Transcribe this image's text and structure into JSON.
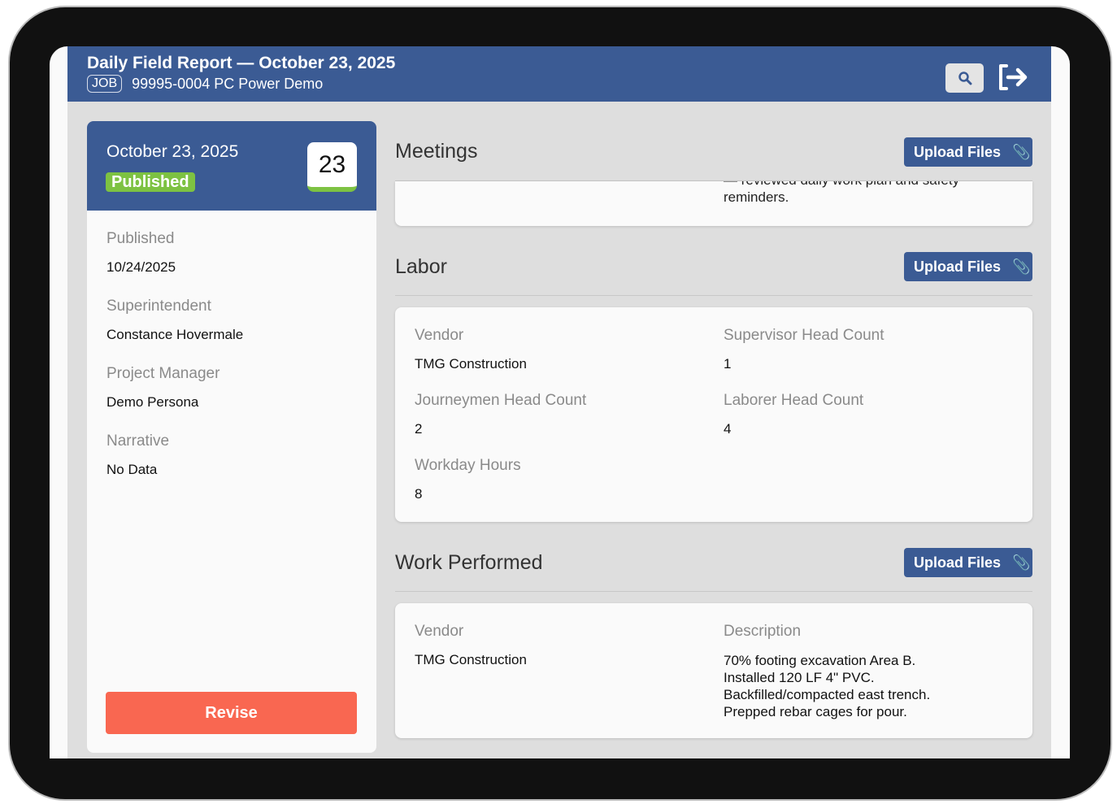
{
  "header": {
    "title": "Daily Field Report — October 23, 2025",
    "job_tag": "JOB",
    "job": "99995-0004 PC Power Demo"
  },
  "summary": {
    "date": "October 23, 2025",
    "status": "Published",
    "day": "23",
    "colors": {
      "status": "#7dc242",
      "header": "#3b5b94",
      "revise": "#f96751"
    },
    "fields": [
      {
        "label": "Published",
        "value": "10/24/2025"
      },
      {
        "label": "Superintendent",
        "value": "Constance Hovermale"
      },
      {
        "label": "Project Manager",
        "value": "Demo Persona"
      },
      {
        "label": "Narrative",
        "value": "No Data"
      }
    ],
    "revise": "Revise"
  },
  "upload_label": "Upload Files",
  "meetings": {
    "title": "Meetings",
    "text_clipped": "— reviewed daily work plan and safety",
    "text": "reminders."
  },
  "labor": {
    "title": "Labor",
    "fields": [
      {
        "label": "Vendor",
        "value": "TMG Construction"
      },
      {
        "label": "Supervisor Head Count",
        "value": "1"
      },
      {
        "label": "Journeymen Head Count",
        "value": "2"
      },
      {
        "label": "Laborer Head Count",
        "value": "4"
      },
      {
        "label": "Workday Hours",
        "value": "8"
      }
    ]
  },
  "work": {
    "title": "Work Performed",
    "vendor_label": "Vendor",
    "vendor": "TMG Construction",
    "desc_label": "Description",
    "desc": [
      "70% footing excavation Area B.",
      "Installed 120 LF 4\" PVC.",
      "Backfilled/compacted east trench.",
      "Prepped rebar cages for pour."
    ]
  }
}
